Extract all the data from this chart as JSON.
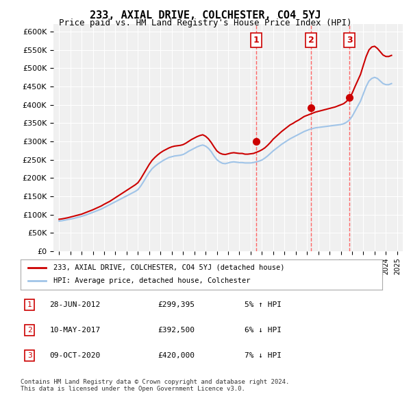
{
  "title": "233, AXIAL DRIVE, COLCHESTER, CO4 5YJ",
  "subtitle": "Price paid vs. HM Land Registry's House Price Index (HPI)",
  "ylabel_ticks": [
    "£0",
    "£50K",
    "£100K",
    "£150K",
    "£200K",
    "£250K",
    "£300K",
    "£350K",
    "£400K",
    "£450K",
    "£500K",
    "£550K",
    "£600K"
  ],
  "ytick_values": [
    0,
    50000,
    100000,
    150000,
    200000,
    250000,
    300000,
    350000,
    400000,
    450000,
    500000,
    550000,
    600000
  ],
  "xlim_start": 1994.5,
  "xlim_end": 2025.5,
  "ylim_min": 0,
  "ylim_max": 620000,
  "background_color": "#ffffff",
  "plot_bg_color": "#f0f0f0",
  "grid_color": "#ffffff",
  "purchases": [
    {
      "date_year": 2012.49,
      "price": 299395,
      "label": "1"
    },
    {
      "date_year": 2017.36,
      "price": 392500,
      "label": "2"
    },
    {
      "date_year": 2020.77,
      "price": 420000,
      "label": "3"
    }
  ],
  "purchase_vline_color": "#ff6666",
  "purchase_dot_color": "#cc0000",
  "purchase_label_color": "#cc0000",
  "hpi_line_color": "#a0c4e8",
  "property_line_color": "#cc0000",
  "legend_label_property": "233, AXIAL DRIVE, COLCHESTER, CO4 5YJ (detached house)",
  "legend_label_hpi": "HPI: Average price, detached house, Colchester",
  "table_rows": [
    {
      "num": "1",
      "date": "28-JUN-2012",
      "price": "£299,395",
      "pct": "5% ↑ HPI"
    },
    {
      "num": "2",
      "date": "10-MAY-2017",
      "price": "£392,500",
      "pct": "6% ↓ HPI"
    },
    {
      "num": "3",
      "date": "09-OCT-2020",
      "price": "£420,000",
      "pct": "7% ↓ HPI"
    }
  ],
  "footer": "Contains HM Land Registry data © Crown copyright and database right 2024.\nThis data is licensed under the Open Government Licence v3.0.",
  "hpi_years": [
    1995,
    1995.25,
    1995.5,
    1995.75,
    1996,
    1996.25,
    1996.5,
    1996.75,
    1997,
    1997.25,
    1997.5,
    1997.75,
    1998,
    1998.25,
    1998.5,
    1998.75,
    1999,
    1999.25,
    1999.5,
    1999.75,
    2000,
    2000.25,
    2000.5,
    2000.75,
    2001,
    2001.25,
    2001.5,
    2001.75,
    2002,
    2002.25,
    2002.5,
    2002.75,
    2003,
    2003.25,
    2003.5,
    2003.75,
    2004,
    2004.25,
    2004.5,
    2004.75,
    2005,
    2005.25,
    2005.5,
    2005.75,
    2006,
    2006.25,
    2006.5,
    2006.75,
    2007,
    2007.25,
    2007.5,
    2007.75,
    2008,
    2008.25,
    2008.5,
    2008.75,
    2009,
    2009.25,
    2009.5,
    2009.75,
    2010,
    2010.25,
    2010.5,
    2010.75,
    2011,
    2011.25,
    2011.5,
    2011.75,
    2012,
    2012.25,
    2012.5,
    2012.75,
    2013,
    2013.25,
    2013.5,
    2013.75,
    2014,
    2014.25,
    2014.5,
    2014.75,
    2015,
    2015.25,
    2015.5,
    2015.75,
    2016,
    2016.25,
    2016.5,
    2016.75,
    2017,
    2017.25,
    2017.5,
    2017.75,
    2018,
    2018.25,
    2018.5,
    2018.75,
    2019,
    2019.25,
    2019.5,
    2019.75,
    2020,
    2020.25,
    2020.5,
    2020.75,
    2021,
    2021.25,
    2021.5,
    2021.75,
    2022,
    2022.25,
    2022.5,
    2022.75,
    2023,
    2023.25,
    2023.5,
    2023.75,
    2024,
    2024.25,
    2024.5
  ],
  "hpi_values": [
    82000,
    83000,
    84500,
    86000,
    87500,
    89000,
    91000,
    93000,
    95000,
    97500,
    100000,
    103000,
    106000,
    109000,
    112000,
    115000,
    119000,
    123000,
    127000,
    131000,
    135000,
    139000,
    143000,
    147000,
    151000,
    155000,
    159000,
    163000,
    168000,
    178000,
    190000,
    203000,
    215000,
    225000,
    232000,
    238000,
    243000,
    248000,
    252000,
    256000,
    258000,
    260000,
    261000,
    262000,
    264000,
    268000,
    273000,
    277000,
    281000,
    285000,
    288000,
    290000,
    287000,
    281000,
    272000,
    260000,
    250000,
    244000,
    240000,
    239000,
    241000,
    243000,
    244000,
    243000,
    242000,
    242000,
    241000,
    241000,
    241000,
    242000,
    244000,
    246000,
    249000,
    254000,
    260000,
    267000,
    274000,
    280000,
    286000,
    292000,
    297000,
    302000,
    307000,
    311000,
    315000,
    319000,
    323000,
    327000,
    330000,
    333000,
    335000,
    337000,
    338000,
    339000,
    340000,
    341000,
    342000,
    343000,
    344000,
    345000,
    346000,
    348000,
    352000,
    358000,
    368000,
    382000,
    396000,
    410000,
    430000,
    450000,
    465000,
    472000,
    475000,
    472000,
    465000,
    458000,
    455000,
    455000,
    458000
  ],
  "prop_years": [
    1995,
    1995.25,
    1995.5,
    1995.75,
    1996,
    1996.25,
    1996.5,
    1996.75,
    1997,
    1997.25,
    1997.5,
    1997.75,
    1998,
    1998.25,
    1998.5,
    1998.75,
    1999,
    1999.25,
    1999.5,
    1999.75,
    2000,
    2000.25,
    2000.5,
    2000.75,
    2001,
    2001.25,
    2001.5,
    2001.75,
    2002,
    2002.25,
    2002.5,
    2002.75,
    2003,
    2003.25,
    2003.5,
    2003.75,
    2004,
    2004.25,
    2004.5,
    2004.75,
    2005,
    2005.25,
    2005.5,
    2005.75,
    2006,
    2006.25,
    2006.5,
    2006.75,
    2007,
    2007.25,
    2007.5,
    2007.75,
    2008,
    2008.25,
    2008.5,
    2008.75,
    2009,
    2009.25,
    2009.5,
    2009.75,
    2010,
    2010.25,
    2010.5,
    2010.75,
    2011,
    2011.25,
    2011.5,
    2011.75,
    2012,
    2012.25,
    2012.5,
    2012.75,
    2013,
    2013.25,
    2013.5,
    2013.75,
    2014,
    2014.25,
    2014.5,
    2014.75,
    2015,
    2015.25,
    2015.5,
    2015.75,
    2016,
    2016.25,
    2016.5,
    2016.75,
    2017,
    2017.25,
    2017.5,
    2017.75,
    2018,
    2018.25,
    2018.5,
    2018.75,
    2019,
    2019.25,
    2019.5,
    2019.75,
    2020,
    2020.25,
    2020.5,
    2020.75,
    2021,
    2021.25,
    2021.5,
    2021.75,
    2022,
    2022.25,
    2022.5,
    2022.75,
    2023,
    2023.25,
    2023.5,
    2023.75,
    2024,
    2024.25,
    2024.5
  ],
  "prop_values": [
    87000,
    88000,
    89500,
    91000,
    93000,
    95000,
    97000,
    99000,
    101000,
    104000,
    107000,
    110000,
    113000,
    116500,
    120000,
    123500,
    128000,
    132000,
    136000,
    141000,
    146000,
    151000,
    156000,
    161000,
    166000,
    171000,
    176000,
    181000,
    187000,
    198000,
    211000,
    224000,
    237000,
    248000,
    256000,
    263000,
    269000,
    274000,
    278000,
    282000,
    285000,
    287000,
    288000,
    289000,
    291000,
    295000,
    300000,
    305000,
    309000,
    313000,
    316000,
    318000,
    314000,
    307000,
    297000,
    285000,
    274000,
    268000,
    265000,
    264000,
    266000,
    268000,
    269000,
    268000,
    267000,
    267000,
    265000,
    265000,
    266000,
    267000,
    270000,
    273000,
    277000,
    282000,
    289000,
    297000,
    306000,
    313000,
    320000,
    327000,
    333000,
    339000,
    345000,
    349000,
    354000,
    358000,
    363000,
    368000,
    371000,
    374000,
    377000,
    380000,
    382000,
    384000,
    386000,
    388000,
    390000,
    392000,
    394000,
    397000,
    400000,
    403000,
    409000,
    418000,
    431000,
    449000,
    466000,
    483000,
    508000,
    532000,
    550000,
    558000,
    560000,
    554000,
    545000,
    536000,
    532000,
    532000,
    535000
  ]
}
